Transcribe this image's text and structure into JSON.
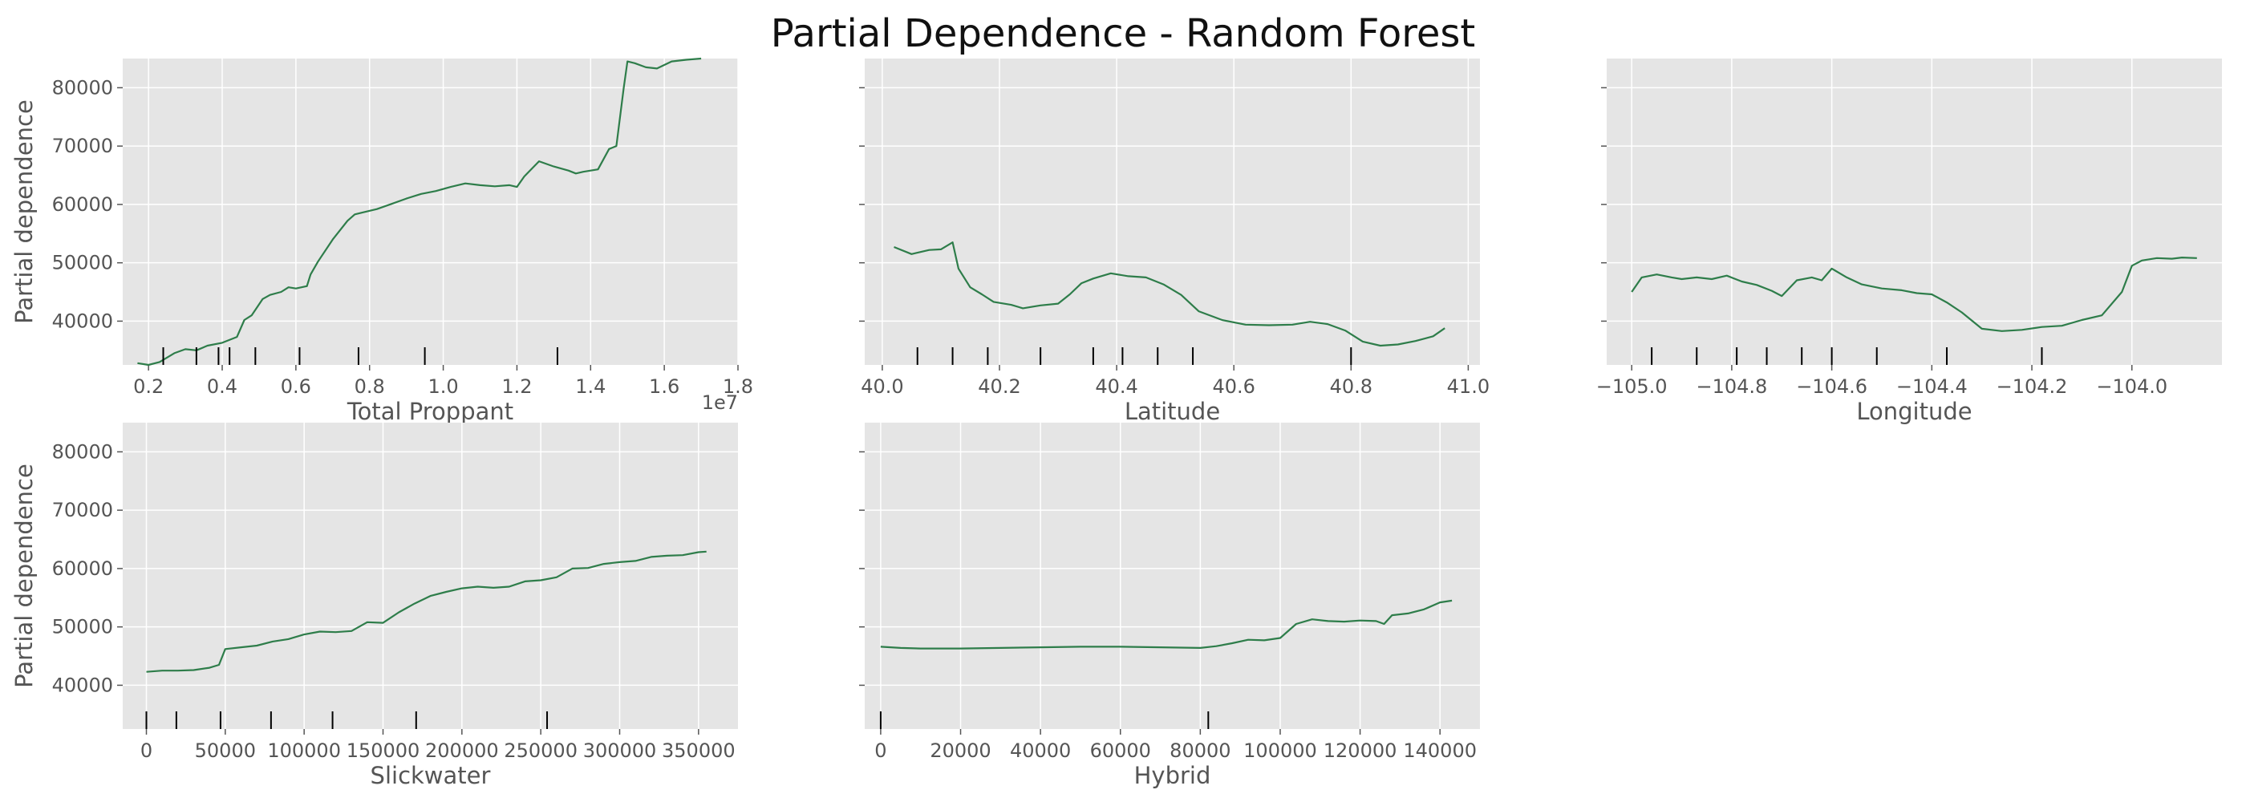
{
  "figure": {
    "title": "Partial Dependence - Random Forest",
    "line_color": "#2e7d4a",
    "axes_bg": "#e5e5e5",
    "grid_color": "#ffffff",
    "text_color": "#555555"
  },
  "chart_data": [
    {
      "type": "line",
      "xlabel": "Total Proppant",
      "ylabel": "Partial dependence",
      "x_offset_label": "1e7",
      "xlim": [
        0.13,
        1.8
      ],
      "ylim": [
        32500,
        85000
      ],
      "xticks": [
        0.2,
        0.4,
        0.6,
        0.8,
        1.0,
        1.2,
        1.4,
        1.6,
        1.8
      ],
      "xtick_labels": [
        "0.2",
        "0.4",
        "0.6",
        "0.8",
        "1.0",
        "1.2",
        "1.4",
        "1.6",
        "1.8"
      ],
      "yticks": [
        40000,
        50000,
        60000,
        70000,
        80000
      ],
      "ytick_labels": [
        "40000",
        "50000",
        "60000",
        "70000",
        "80000"
      ],
      "show_ytick_labels": true,
      "deciles": [
        0.24,
        0.33,
        0.39,
        0.42,
        0.49,
        0.61,
        0.77,
        0.95,
        1.31
      ],
      "series": [
        {
          "x": [
            0.17,
            0.2,
            0.23,
            0.27,
            0.3,
            0.33,
            0.36,
            0.4,
            0.44,
            0.46,
            0.48,
            0.51,
            0.53,
            0.56,
            0.58,
            0.6,
            0.63,
            0.64,
            0.66,
            0.7,
            0.74,
            0.76,
            0.78,
            0.82,
            0.86,
            0.9,
            0.94,
            0.98,
            1.02,
            1.06,
            1.1,
            1.14,
            1.18,
            1.2,
            1.22,
            1.26,
            1.3,
            1.34,
            1.36,
            1.38,
            1.42,
            1.45,
            1.47,
            1.49,
            1.5,
            1.52,
            1.55,
            1.58,
            1.62,
            1.66,
            1.7
          ],
          "y": [
            32800,
            32500,
            33000,
            34500,
            35200,
            35000,
            35800,
            36300,
            37300,
            40200,
            41000,
            43800,
            44500,
            45000,
            45800,
            45600,
            46000,
            48000,
            50200,
            54000,
            57200,
            58300,
            58600,
            59200,
            60100,
            61000,
            61800,
            62300,
            63000,
            63600,
            63300,
            63100,
            63300,
            63000,
            64800,
            67400,
            66500,
            65800,
            65300,
            65600,
            66000,
            69500,
            70000,
            80000,
            84500,
            84200,
            83500,
            83300,
            84500,
            84800,
            85000
          ]
        }
      ]
    },
    {
      "type": "line",
      "xlabel": "Latitude",
      "ylabel": "",
      "xlim": [
        39.97,
        41.02
      ],
      "ylim": [
        32500,
        85000
      ],
      "xticks": [
        40.0,
        40.2,
        40.4,
        40.6,
        40.8,
        41.0
      ],
      "xtick_labels": [
        "40.0",
        "40.2",
        "40.4",
        "40.6",
        "40.8",
        "41.0"
      ],
      "yticks": [
        40000,
        50000,
        60000,
        70000,
        80000
      ],
      "ytick_labels": [
        "40000",
        "50000",
        "60000",
        "70000",
        "80000"
      ],
      "show_ytick_labels": false,
      "deciles": [
        40.06,
        40.12,
        40.18,
        40.27,
        40.36,
        40.41,
        40.47,
        40.53,
        40.8
      ],
      "series": [
        {
          "x": [
            40.02,
            40.05,
            40.08,
            40.1,
            40.12,
            40.13,
            40.15,
            40.17,
            40.19,
            40.22,
            40.24,
            40.27,
            40.3,
            40.32,
            40.34,
            40.36,
            40.39,
            40.42,
            40.45,
            40.48,
            40.51,
            40.54,
            40.58,
            40.62,
            40.66,
            40.7,
            40.73,
            40.76,
            40.79,
            40.82,
            40.85,
            40.88,
            40.91,
            40.94,
            40.96
          ],
          "y": [
            52700,
            51500,
            52200,
            52300,
            53500,
            49000,
            45800,
            44600,
            43300,
            42800,
            42200,
            42700,
            43000,
            44600,
            46500,
            47300,
            48200,
            47700,
            47500,
            46300,
            44500,
            41700,
            40200,
            39400,
            39300,
            39400,
            39900,
            39500,
            38400,
            36500,
            35800,
            36000,
            36600,
            37400,
            38800
          ]
        }
      ]
    },
    {
      "type": "line",
      "xlabel": "Longitude",
      "ylabel": "",
      "xlim": [
        -105.05,
        -103.82
      ],
      "ylim": [
        32500,
        85000
      ],
      "xticks": [
        -105.0,
        -104.8,
        -104.6,
        -104.4,
        -104.2,
        -104.0
      ],
      "xtick_labels": [
        "−105.0",
        "−104.8",
        "−104.6",
        "−104.4",
        "−104.2",
        "−104.0"
      ],
      "yticks": [
        40000,
        50000,
        60000,
        70000,
        80000
      ],
      "ytick_labels": [
        "40000",
        "50000",
        "60000",
        "70000",
        "80000"
      ],
      "show_ytick_labels": false,
      "deciles": [
        -104.96,
        -104.87,
        -104.79,
        -104.73,
        -104.66,
        -104.6,
        -104.51,
        -104.37,
        -104.18
      ],
      "series": [
        {
          "x": [
            -105.0,
            -104.98,
            -104.95,
            -104.92,
            -104.9,
            -104.87,
            -104.84,
            -104.81,
            -104.78,
            -104.75,
            -104.72,
            -104.7,
            -104.67,
            -104.64,
            -104.62,
            -104.6,
            -104.57,
            -104.54,
            -104.5,
            -104.46,
            -104.43,
            -104.4,
            -104.37,
            -104.34,
            -104.3,
            -104.26,
            -104.22,
            -104.18,
            -104.14,
            -104.1,
            -104.06,
            -104.02,
            -104.0,
            -103.98,
            -103.95,
            -103.92,
            -103.9,
            -103.87
          ],
          "y": [
            45000,
            47500,
            48000,
            47500,
            47200,
            47500,
            47200,
            47800,
            46800,
            46200,
            45200,
            44300,
            47000,
            47500,
            47000,
            49000,
            47500,
            46300,
            45600,
            45300,
            44800,
            44600,
            43200,
            41500,
            38700,
            38300,
            38500,
            39000,
            39200,
            40200,
            41000,
            45000,
            49500,
            50400,
            50800,
            50700,
            50900,
            50800
          ]
        }
      ]
    },
    {
      "type": "line",
      "xlabel": "Slickwater",
      "ylabel": "Partial dependence",
      "xlim": [
        -15000,
        375000
      ],
      "ylim": [
        32500,
        85000
      ],
      "xticks": [
        0,
        50000,
        100000,
        150000,
        200000,
        250000,
        300000,
        350000
      ],
      "xtick_labels": [
        "0",
        "50000",
        "100000",
        "150000",
        "200000",
        "250000",
        "300000",
        "350000"
      ],
      "yticks": [
        40000,
        50000,
        60000,
        70000,
        80000
      ],
      "ytick_labels": [
        "40000",
        "50000",
        "60000",
        "70000",
        "80000"
      ],
      "show_ytick_labels": true,
      "deciles": [
        0,
        19000,
        47000,
        79000,
        118000,
        171000,
        254000
      ],
      "series": [
        {
          "x": [
            0,
            10000,
            20000,
            30000,
            40000,
            46000,
            50000,
            60000,
            70000,
            80000,
            90000,
            100000,
            110000,
            120000,
            130000,
            140000,
            150000,
            160000,
            170000,
            180000,
            190000,
            200000,
            210000,
            220000,
            230000,
            240000,
            250000,
            260000,
            270000,
            280000,
            290000,
            300000,
            310000,
            320000,
            330000,
            340000,
            350000,
            355000
          ],
          "y": [
            42300,
            42500,
            42500,
            42600,
            43000,
            43500,
            46200,
            46500,
            46800,
            47500,
            47900,
            48700,
            49200,
            49100,
            49300,
            50800,
            50700,
            52500,
            54000,
            55300,
            56000,
            56600,
            56900,
            56700,
            56900,
            57800,
            58000,
            58500,
            60000,
            60100,
            60800,
            61100,
            61300,
            62000,
            62200,
            62300,
            62800,
            62900
          ]
        }
      ]
    },
    {
      "type": "line",
      "xlabel": "Hybrid",
      "ylabel": "",
      "xlim": [
        -4000,
        150000
      ],
      "ylim": [
        32500,
        85000
      ],
      "xticks": [
        0,
        20000,
        40000,
        60000,
        80000,
        100000,
        120000,
        140000
      ],
      "xtick_labels": [
        "0",
        "20000",
        "40000",
        "60000",
        "80000",
        "100000",
        "120000",
        "140000"
      ],
      "yticks": [
        40000,
        50000,
        60000,
        70000,
        80000
      ],
      "ytick_labels": [
        "40000",
        "50000",
        "60000",
        "70000",
        "80000"
      ],
      "show_ytick_labels": false,
      "deciles": [
        0,
        82000
      ],
      "series": [
        {
          "x": [
            0,
            5000,
            10000,
            20000,
            30000,
            40000,
            50000,
            60000,
            70000,
            80000,
            84000,
            88000,
            92000,
            96000,
            100000,
            104000,
            108000,
            112000,
            116000,
            120000,
            124000,
            126000,
            128000,
            132000,
            136000,
            140000,
            143000
          ],
          "y": [
            46600,
            46400,
            46300,
            46300,
            46400,
            46500,
            46600,
            46600,
            46500,
            46400,
            46700,
            47200,
            47800,
            47700,
            48100,
            50500,
            51300,
            51000,
            50900,
            51100,
            51000,
            50500,
            52000,
            52300,
            53000,
            54200,
            54500
          ]
        }
      ]
    }
  ]
}
